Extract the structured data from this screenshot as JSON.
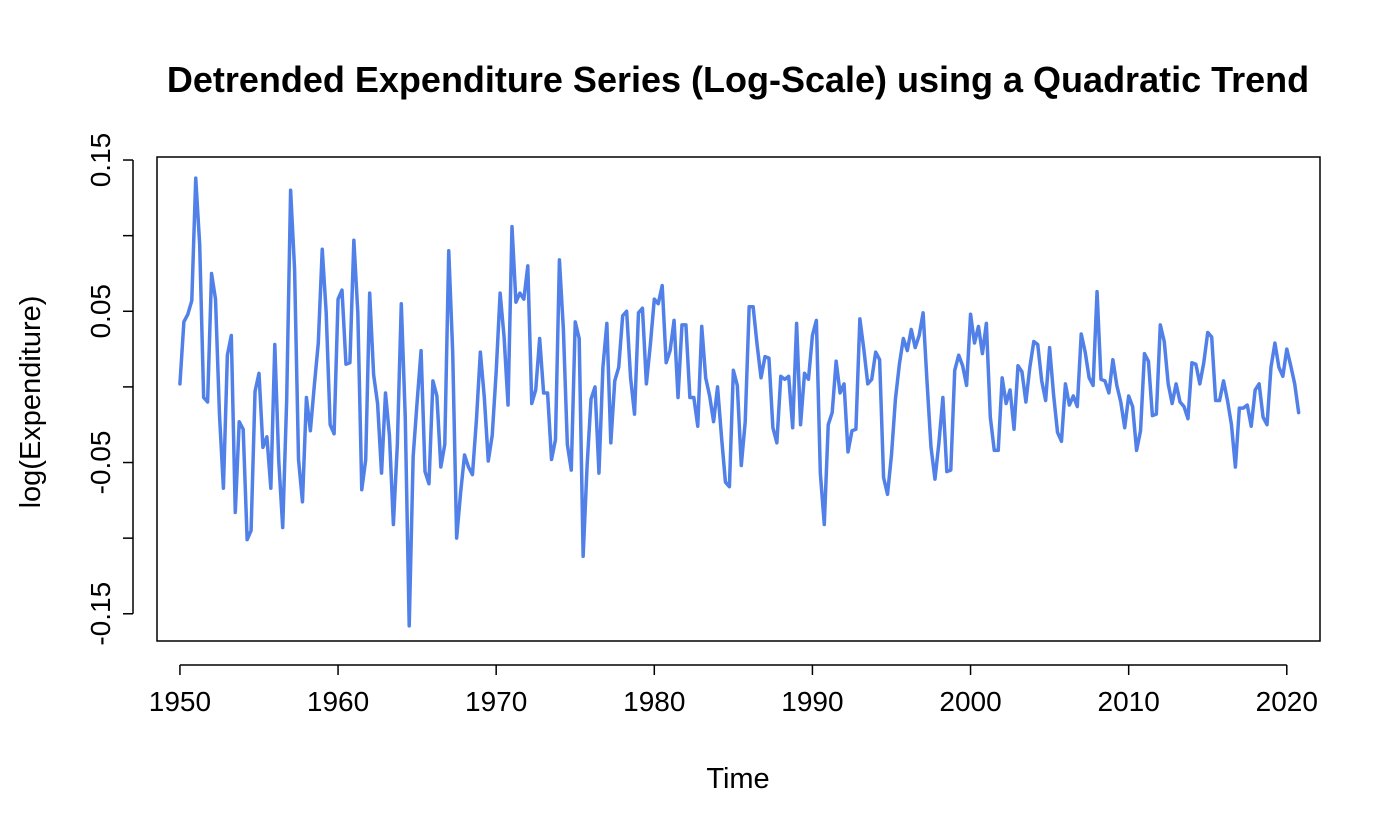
{
  "chart_data": {
    "type": "line",
    "title": "Detrended Expenditure Series (Log-Scale) using a Quadratic Trend",
    "xlabel": "Time",
    "ylabel": "log(Expenditure)",
    "xlim": [
      1948.55,
      2022.1
    ],
    "ylim": [
      -0.168,
      0.152
    ],
    "x_ticks": [
      1950,
      1960,
      1970,
      1980,
      1990,
      2000,
      2010,
      2020
    ],
    "x_tick_labels": [
      "1950",
      "1960",
      "1970",
      "1980",
      "1990",
      "2000",
      "2010",
      "2020"
    ],
    "y_ticks": [
      -0.15,
      -0.1,
      -0.05,
      0.0,
      0.05,
      0.1,
      0.15
    ],
    "y_tick_labels": [
      "-0.15",
      "",
      "-0.05",
      "",
      "0.05",
      "",
      "0.15"
    ],
    "grid": false,
    "legend": "none",
    "line_color": "#5080E8",
    "series": [
      {
        "x_start": 1950.0,
        "x_step": 0.25,
        "values": [
          0.002,
          0.043,
          0.048,
          0.057,
          0.138,
          0.094,
          -0.007,
          -0.01,
          0.075,
          0.058,
          -0.018,
          -0.067,
          0.021,
          0.034,
          -0.083,
          -0.023,
          -0.028,
          -0.101,
          -0.095,
          -0.003,
          0.009,
          -0.04,
          -0.033,
          -0.067,
          0.028,
          -0.049,
          -0.093,
          -0.009,
          0.13,
          0.078,
          -0.048,
          -0.076,
          -0.007,
          -0.029,
          0.001,
          0.029,
          0.091,
          0.049,
          -0.025,
          -0.031,
          0.058,
          0.064,
          0.015,
          0.016,
          0.097,
          0.049,
          -0.068,
          -0.048,
          0.062,
          0.008,
          -0.011,
          -0.057,
          -0.004,
          -0.032,
          -0.091,
          -0.038,
          0.055,
          -0.02,
          -0.158,
          -0.046,
          -0.01,
          0.024,
          -0.056,
          -0.064,
          0.004,
          -0.006,
          -0.053,
          -0.038,
          0.09,
          0.023,
          -0.1,
          -0.07,
          -0.045,
          -0.053,
          -0.058,
          -0.022,
          0.023,
          -0.007,
          -0.049,
          -0.032,
          0.01,
          0.062,
          0.033,
          -0.012,
          0.106,
          0.056,
          0.062,
          0.058,
          0.08,
          -0.011,
          -0.002,
          0.032,
          -0.004,
          -0.004,
          -0.048,
          -0.035,
          0.084,
          0.038,
          -0.038,
          -0.055,
          0.043,
          0.032,
          -0.112,
          -0.052,
          -0.008,
          0.0,
          -0.057,
          0.013,
          0.042,
          -0.037,
          0.004,
          0.013,
          0.047,
          0.05,
          0.006,
          -0.018,
          0.049,
          0.052,
          0.002,
          0.028,
          0.058,
          0.055,
          0.067,
          0.016,
          0.024,
          0.044,
          -0.007,
          0.041,
          0.041,
          -0.007,
          -0.007,
          -0.026,
          0.04,
          0.006,
          -0.006,
          -0.023,
          0.0,
          -0.033,
          -0.063,
          -0.066,
          0.011,
          0.001,
          -0.052,
          -0.023,
          0.053,
          0.053,
          0.028,
          0.006,
          0.02,
          0.019,
          -0.027,
          -0.037,
          0.007,
          0.005,
          0.007,
          -0.027,
          0.042,
          -0.025,
          0.009,
          0.005,
          0.034,
          0.044,
          -0.057,
          -0.091,
          -0.025,
          -0.017,
          0.017,
          -0.004,
          0.002,
          -0.043,
          -0.029,
          -0.028,
          0.045,
          0.025,
          0.002,
          0.005,
          0.023,
          0.018,
          -0.06,
          -0.071,
          -0.045,
          -0.008,
          0.015,
          0.032,
          0.024,
          0.038,
          0.026,
          0.034,
          0.049,
          0.003,
          -0.04,
          -0.061,
          -0.037,
          -0.007,
          -0.056,
          -0.055,
          0.011,
          0.021,
          0.014,
          0.001,
          0.048,
          0.029,
          0.04,
          0.022,
          0.042,
          -0.02,
          -0.042,
          -0.042,
          0.006,
          -0.011,
          -0.002,
          -0.028,
          0.014,
          0.01,
          -0.01,
          0.013,
          0.03,
          0.028,
          0.004,
          -0.009,
          0.026,
          -0.005,
          -0.03,
          -0.036,
          0.002,
          -0.012,
          -0.006,
          -0.013,
          0.035,
          0.023,
          0.006,
          0.001,
          0.063,
          0.005,
          0.004,
          -0.004,
          0.018,
          0.001,
          -0.01,
          -0.027,
          -0.006,
          -0.013,
          -0.042,
          -0.029,
          0.022,
          0.017,
          -0.019,
          -0.018,
          0.041,
          0.03,
          0.002,
          -0.011,
          0.002,
          -0.01,
          -0.013,
          -0.021,
          0.016,
          0.015,
          0.002,
          0.016,
          0.036,
          0.033,
          -0.009,
          -0.009,
          0.004,
          -0.009,
          -0.025,
          -0.053,
          -0.014,
          -0.014,
          -0.012,
          -0.026,
          -0.002,
          0.002,
          -0.02,
          -0.025,
          0.013,
          0.029,
          0.013,
          0.007,
          0.025,
          0.014,
          0.002,
          -0.017
        ]
      }
    ]
  }
}
